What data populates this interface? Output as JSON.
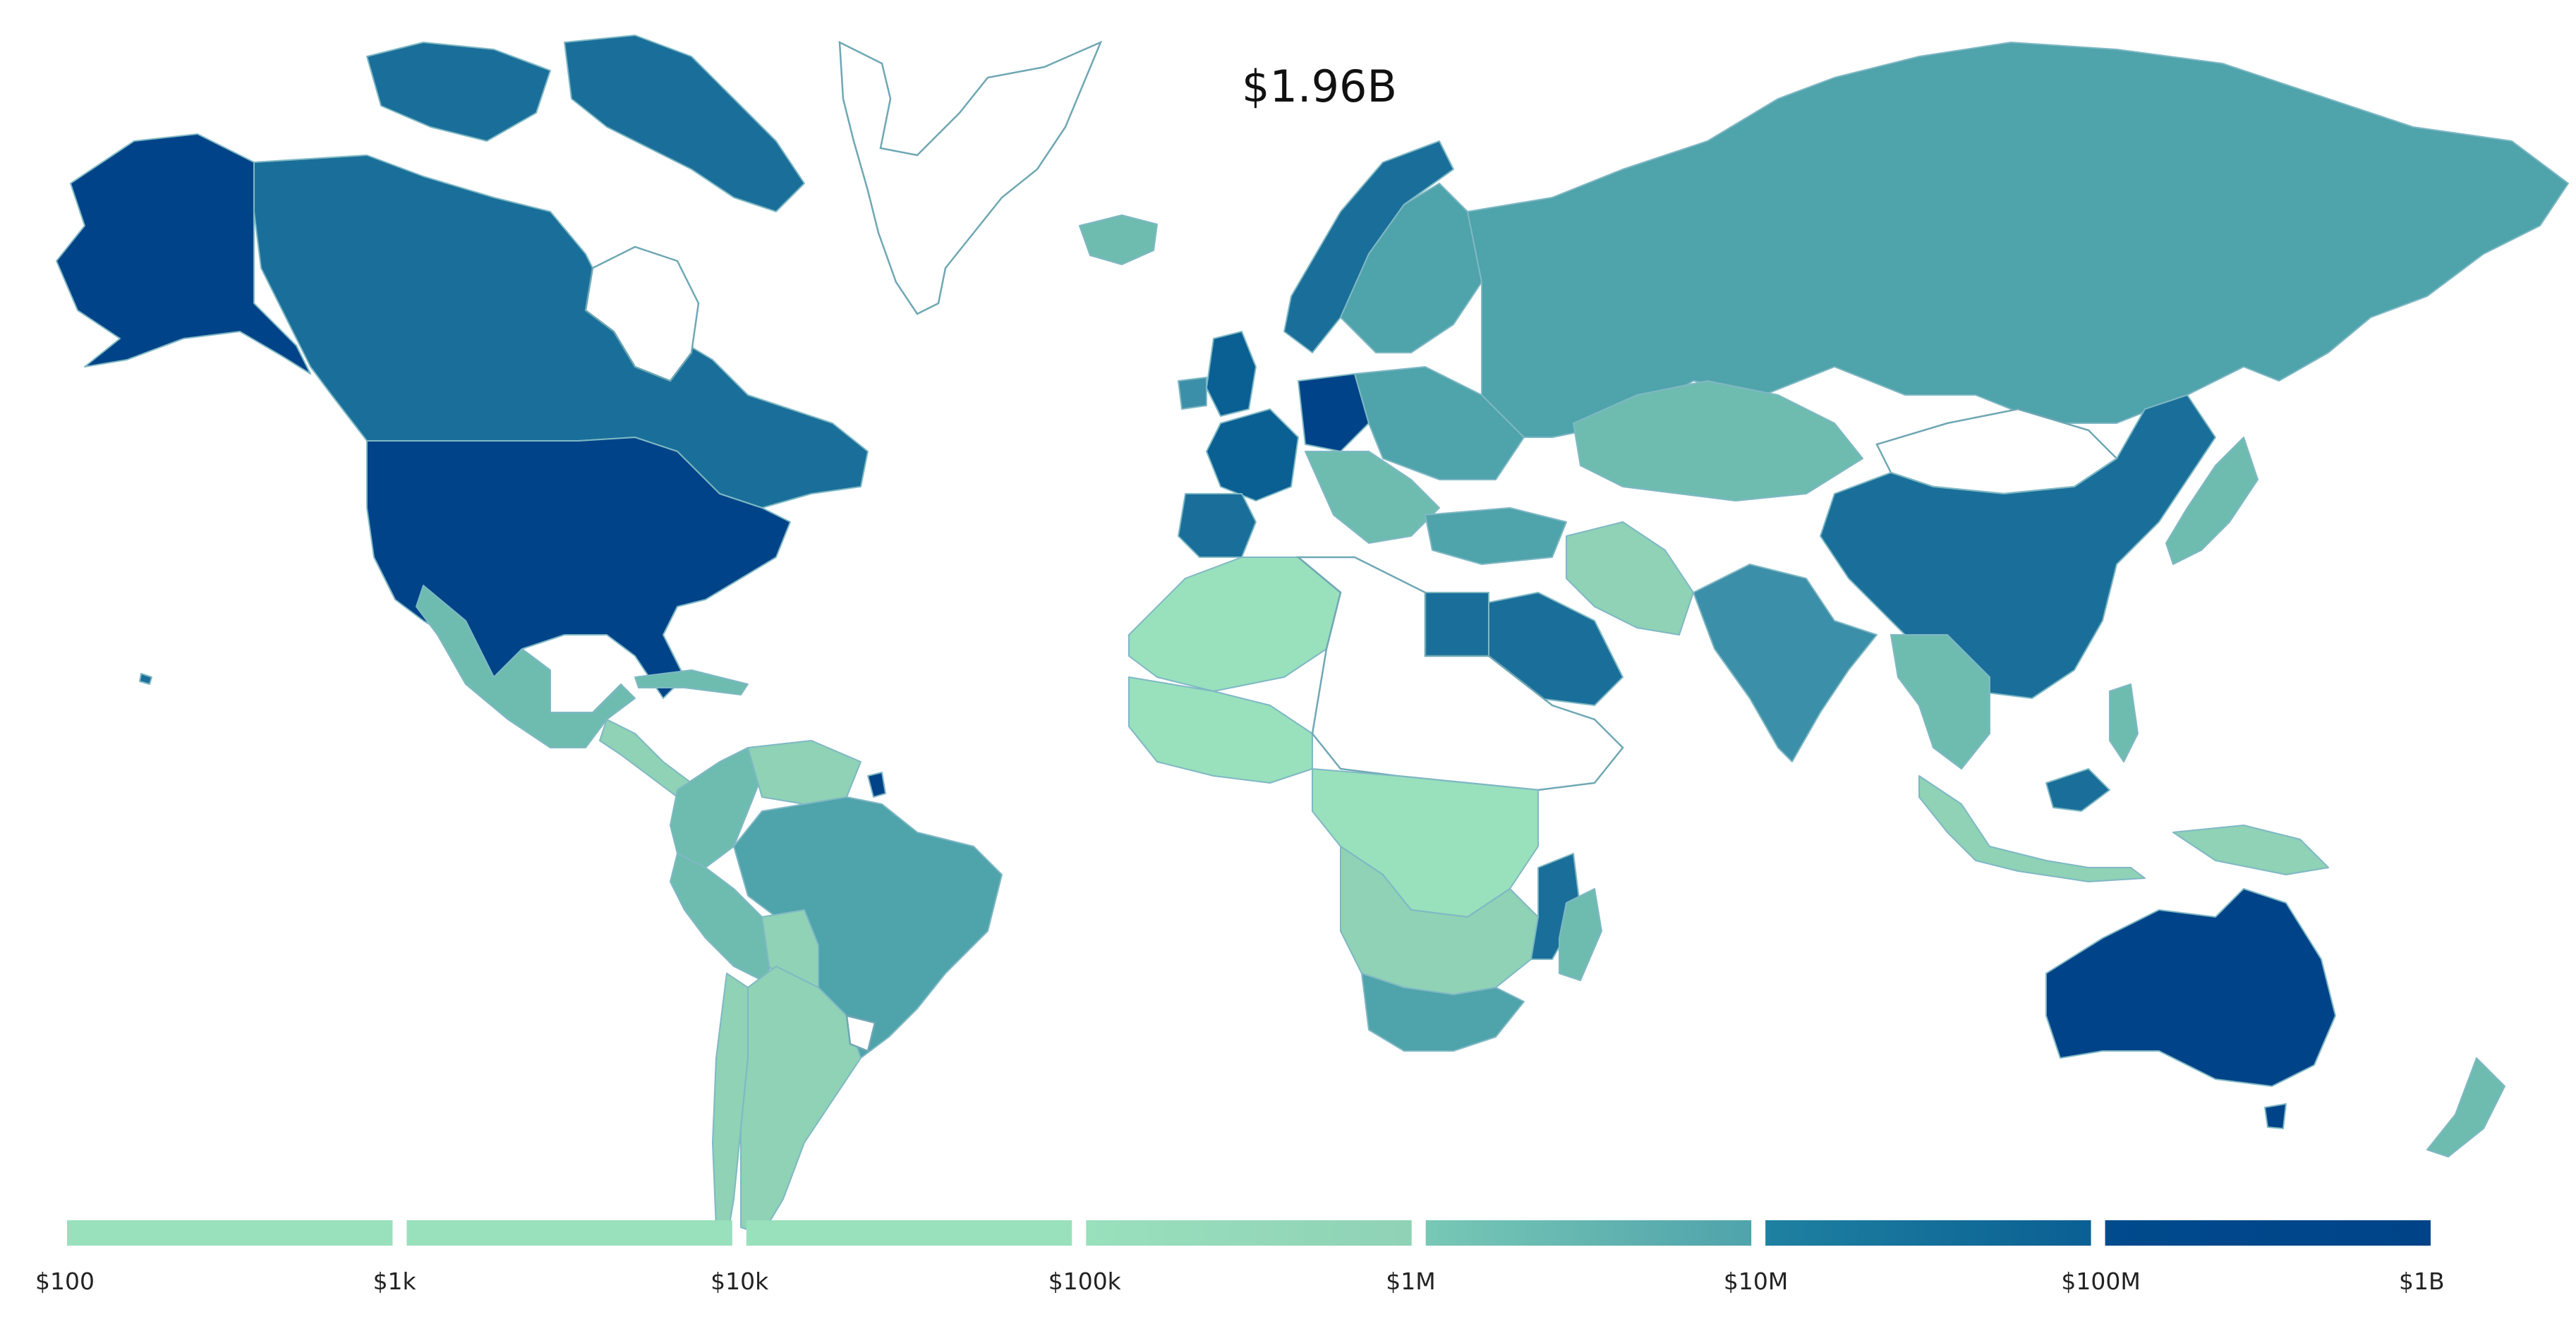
{
  "map": {
    "total_label": "$1.96B",
    "scale": "log",
    "colors": {
      "none": "#ffffff",
      "lowest": "#99e0bd",
      "low": "#8fd2b6",
      "mid_low": "#6ebcb0",
      "mid": "#4fa3ab",
      "mid_high": "#3c8fa8",
      "high": "#1a6f9a",
      "higher": "#0a5f93",
      "highest": "#004388"
    },
    "legend": {
      "ticks": [
        "$100",
        "$1k",
        "$10k",
        "$100k",
        "$1M",
        "$10M",
        "$100M",
        "$1B"
      ],
      "bands": [
        {
          "from": "#99e0bd",
          "to": "#99e0bd"
        },
        {
          "from": "#99e0bd",
          "to": "#99e0bd"
        },
        {
          "from": "#99e0bd",
          "to": "#99e0bd"
        },
        {
          "from": "#99e0bd",
          "to": "#8fd2b6"
        },
        {
          "from": "#78c8b6",
          "to": "#4fa3ab"
        },
        {
          "from": "#1f81a1",
          "to": "#0a5f93"
        },
        {
          "from": "#004b8d",
          "to": "#004388"
        }
      ]
    }
  }
}
